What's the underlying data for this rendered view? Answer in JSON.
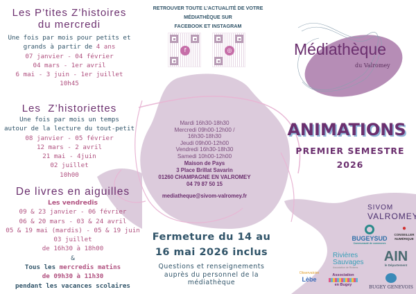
{
  "ptites": {
    "title1": "Les P’tites Z’histoires",
    "title2": "du mercredi",
    "desc1": "Une fois par mois pour petits et",
    "desc2a": "grands à partir de ",
    "desc2b": "4 ans",
    "dates": [
      "07 janvier - 04 février",
      "04 mars - 1er avril",
      "6 mai - 3 juin - 1er juillet",
      "10h45"
    ]
  },
  "historiettes": {
    "title": "Les  Z’historiettes",
    "desc": [
      "Une fois par mois un temps",
      "autour de la lecture du tout-petit"
    ],
    "dates": [
      "08 janvier - 05 février",
      "12 mars - 2 avril",
      "21 mai - 4juin",
      "02 juillet",
      "10h00"
    ]
  },
  "aiguilles": {
    "title": "De livres en aiguilles",
    "subtitle": "Les vendredis",
    "dates": [
      "09 & 23 janvier - 06 février",
      "06 & 20 mars - 03 & 24 avril",
      "05 & 19 mai (mardis) - 05 & 19 juin",
      "03 juillet",
      "de 16h30 à 18h00"
    ],
    "amp": "&",
    "extra1a": "Tous les ",
    "extra1b": "mercredis matins",
    "extra2": "de 09h30 à 11h30",
    "extra3": "pendant les vacances scolaires"
  },
  "social": {
    "lines": [
      "RETROUVER TOUTE L’ACTUALITÉ DE VOTRE",
      "MÉDIATHÈQUE SUR",
      "FACEBOOK ET INSTAGRAM"
    ],
    "qr": [
      {
        "icon": "facebook-icon",
        "glyph": "f"
      },
      {
        "icon": "instagram-icon",
        "glyph": "◎"
      }
    ]
  },
  "hours": [
    "Mardi  16h30-18h30",
    "Mercredi  09h00-12h00 /",
    "16h30-18h30",
    "Jeudi  09h00-12h00",
    "Vendredi  16h30-18h30",
    "Samedi  10h00-12h00"
  ],
  "address": [
    "Maison de Pays",
    "3 Place Brillat Savarin",
    "01260 CHAMPAGNE EN VALROMEY",
    "04 79 87 50 15"
  ],
  "email": "mediatheque@sivom-valromey.fr",
  "closure": {
    "line1": "Fermeture du 14 au",
    "line2": "16 mai 2026 inclus"
  },
  "questions": [
    "Questions et renseignements",
    "auprès du personnel de la",
    "médiathèque"
  ],
  "logo": {
    "name": "Médiathèque",
    "sub": "du Valromey"
  },
  "headline": {
    "title": "ANIMATIONS",
    "sub1": "PREMIER SEMESTRE",
    "sub2": "2026"
  },
  "partners": {
    "sivom1": "SIVOM",
    "sivom2": "VALROMEY",
    "bugey": "BUGEYSUD",
    "bugey_sub": "Communauté de communes",
    "conseiller": "CONSEILLER NUMÉRIQUE",
    "rivieres1": "Rivières",
    "rivieres2": "Sauvages",
    "rivieres_sub": "Association de Rivières",
    "ain": "AIN",
    "ain_sub": "le Département",
    "asso1": "Association",
    "asso2": "en Bugey",
    "genevois": "BUGEY GENEVOIS",
    "obs1": "Observatoire",
    "obs2": "Lèbe"
  },
  "colors": {
    "title": "#6b2f6e",
    "text": "#2f5368",
    "accent": "#b0507f",
    "blob": "#dccbdc"
  }
}
